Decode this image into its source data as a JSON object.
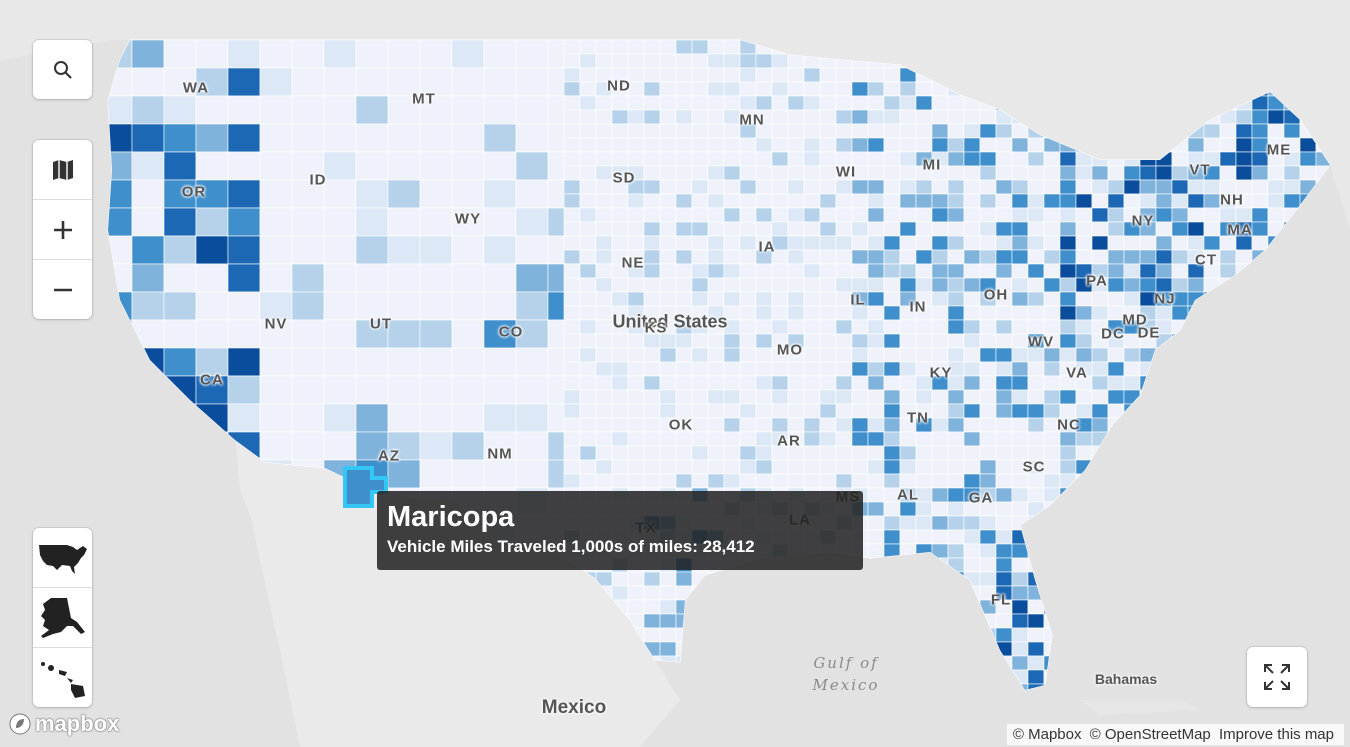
{
  "map": {
    "country_label": "United States",
    "places": [
      {
        "name": "Mexico"
      },
      {
        "name": "Bahamas"
      }
    ],
    "water": {
      "line1": "Gulf of",
      "line2": "Mexico"
    },
    "state_labels": [
      "WA",
      "OR",
      "CA",
      "NV",
      "ID",
      "MT",
      "WY",
      "UT",
      "AZ",
      "NM",
      "CO",
      "ND",
      "SD",
      "NE",
      "KS",
      "OK",
      "TX",
      "MN",
      "IA",
      "MO",
      "AR",
      "LA",
      "WI",
      "IL",
      "MI",
      "IN",
      "OH",
      "KY",
      "TN",
      "MS",
      "AL",
      "GA",
      "FL",
      "SC",
      "NC",
      "VA",
      "WV",
      "PA",
      "NY",
      "VT",
      "NH",
      "ME",
      "MA",
      "CT",
      "NJ",
      "DE",
      "DC",
      "MD"
    ],
    "colors": {
      "land_low": "#f0f2fb",
      "scale": [
        "#dce8f5",
        "#b5d2ea",
        "#7fb3dc",
        "#3f8fcc",
        "#1c68b5",
        "#0b4d9d"
      ],
      "highlight_stroke": "#34c6f4",
      "background": "#e2e2e2"
    }
  },
  "tooltip": {
    "county": "Maricopa",
    "metric_label": "Vehicle Miles Traveled 1,000s of miles:",
    "metric_value": "28,412",
    "value_number": 28412
  },
  "controls": {
    "search_icon": "search-icon",
    "layers_icon": "map-icon",
    "zoom_in_icon": "plus-icon",
    "zoom_out_icon": "minus-icon",
    "views": [
      "contiguous-us-icon",
      "alaska-icon",
      "hawaii-icon"
    ],
    "fullscreen_icon": "fullscreen-icon"
  },
  "brand": {
    "logo_text": "mapbox"
  },
  "attribution": {
    "mapbox": "© Mapbox",
    "osm": "© OpenStreetMap",
    "improve": "Improve this map"
  }
}
